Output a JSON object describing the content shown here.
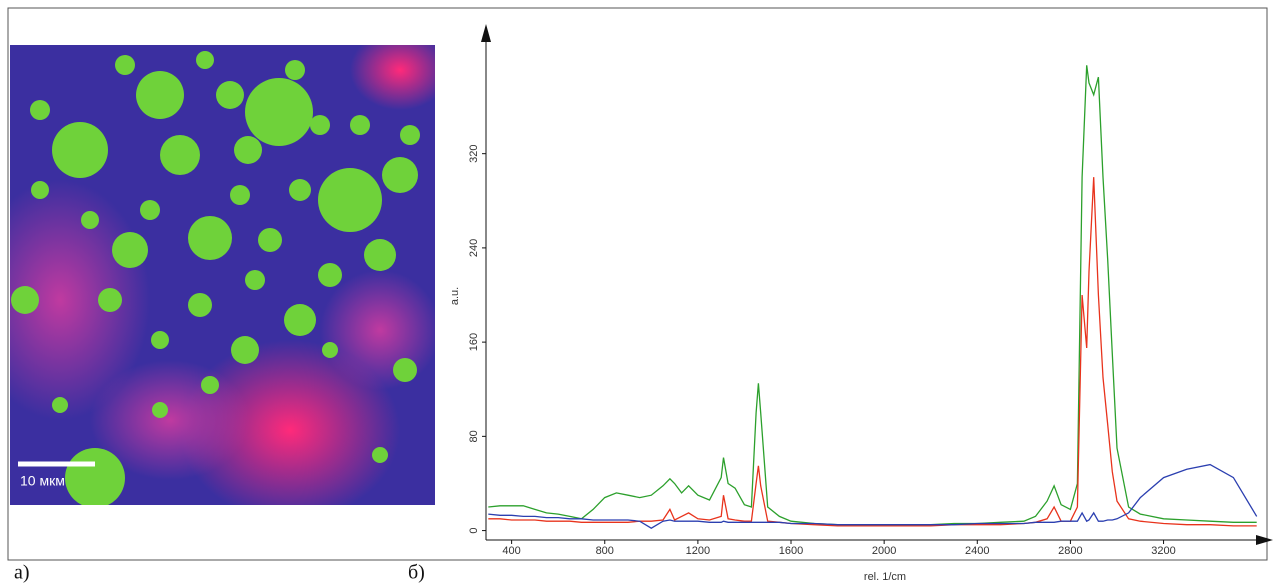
{
  "panels": [
    {
      "label": "а)",
      "scale_bar": "10 мкм"
    },
    {
      "label": "б)"
    }
  ],
  "chart_data": {
    "type": "line",
    "x_label": "rel. 1/cm",
    "y_label": "a.u.",
    "xlim": [
      290,
      3640
    ],
    "ylim": [
      -8,
      425
    ],
    "xticks": [
      400,
      800,
      1200,
      1600,
      2000,
      2400,
      2800,
      3200
    ],
    "yticks": [
      0,
      80,
      160,
      240,
      320
    ],
    "grid": false,
    "x": [
      300,
      350,
      400,
      450,
      500,
      550,
      600,
      650,
      700,
      750,
      800,
      850,
      900,
      950,
      1000,
      1050,
      1080,
      1100,
      1130,
      1160,
      1200,
      1250,
      1300,
      1310,
      1330,
      1360,
      1400,
      1430,
      1450,
      1460,
      1470,
      1500,
      1550,
      1600,
      1700,
      1800,
      1900,
      2000,
      2100,
      2200,
      2300,
      2400,
      2500,
      2600,
      2650,
      2700,
      2730,
      2760,
      2800,
      2830,
      2850,
      2870,
      2880,
      2900,
      2920,
      2940,
      2960,
      2980,
      3000,
      3050,
      3100,
      3200,
      3300,
      3400,
      3500,
      3600
    ],
    "series": [
      {
        "color": "#2ca02c",
        "values": [
          20,
          21,
          21,
          21,
          18,
          15,
          14,
          12,
          10,
          18,
          28,
          32,
          30,
          28,
          30,
          38,
          44,
          40,
          32,
          38,
          30,
          26,
          45,
          62,
          40,
          36,
          22,
          20,
          100,
          125,
          100,
          20,
          12,
          8,
          6,
          5,
          5,
          5,
          5,
          5,
          6,
          6,
          7,
          8,
          12,
          25,
          38,
          22,
          18,
          40,
          300,
          395,
          380,
          370,
          385,
          300,
          230,
          150,
          70,
          20,
          14,
          10,
          9,
          8,
          7,
          7
        ]
      },
      {
        "color": "#e8331c",
        "values": [
          10,
          10,
          9,
          9,
          9,
          8,
          8,
          8,
          7,
          7,
          7,
          7,
          7,
          8,
          8,
          9,
          18,
          9,
          12,
          15,
          10,
          9,
          12,
          30,
          10,
          9,
          8,
          8,
          40,
          55,
          38,
          8,
          7,
          6,
          5,
          4,
          4,
          4,
          4,
          4,
          5,
          5,
          5,
          6,
          7,
          10,
          20,
          8,
          8,
          20,
          200,
          155,
          220,
          300,
          200,
          130,
          90,
          50,
          25,
          10,
          8,
          6,
          5,
          5,
          4,
          4
        ]
      },
      {
        "color": "#2b3fb0",
        "values": [
          14,
          13,
          13,
          12,
          12,
          11,
          11,
          10,
          10,
          9,
          9,
          9,
          9,
          8,
          2,
          8,
          9,
          8,
          8,
          8,
          8,
          7,
          7,
          8,
          7,
          7,
          7,
          7,
          7,
          7,
          7,
          7,
          7,
          6,
          6,
          5,
          5,
          5,
          5,
          5,
          5,
          6,
          6,
          6,
          7,
          7,
          7,
          8,
          8,
          8,
          15,
          8,
          9,
          15,
          8,
          8,
          9,
          9,
          10,
          15,
          28,
          45,
          52,
          56,
          45,
          12
        ]
      }
    ]
  }
}
